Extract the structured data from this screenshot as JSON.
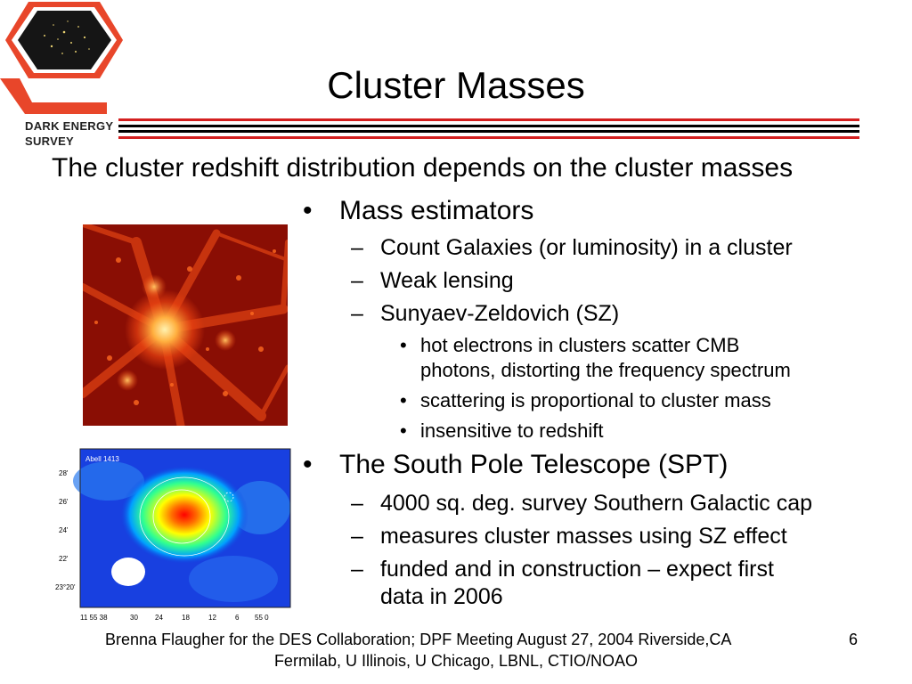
{
  "logo": {
    "line1": "DARK ENERGY",
    "line2": "SURVEY",
    "colors": {
      "frame": "#e8462a",
      "hex": "#151515"
    }
  },
  "slide": {
    "title": "Cluster Masses",
    "subtitle": "The cluster redshift distribution depends on the cluster masses",
    "bullets": {
      "b1": "Mass estimators",
      "b1_subs": [
        "Count Galaxies (or luminosity) in a cluster",
        "Weak lensing",
        "Sunyaev-Zeldovich (SZ)"
      ],
      "sz_points": [
        "hot electrons in clusters scatter CMB",
        "photons, distorting the frequency spectrum",
        "scattering is proportional to cluster mass",
        "insensitive to redshift"
      ],
      "b2": "The South Pole Telescope (SPT)",
      "b2_subs": [
        "4000 sq. deg. survey Southern Galactic cap",
        "measures cluster masses using SZ effect",
        "funded and in construction – expect first",
        "data in 2006"
      ]
    },
    "sz_map": {
      "label": "Abell 1413",
      "y_ticks": [
        "28'",
        "26'",
        "24'",
        "22'",
        "23°20'"
      ],
      "x_ticks": [
        "11 55 38",
        "30",
        "24",
        "18",
        "12",
        "6",
        "55 0"
      ]
    },
    "footer": {
      "line1": "Brenna Flaugher for the DES Collaboration;   DPF Meeting August 27, 2004 Riverside,CA",
      "line2": "Fermilab, U Illinois, U Chicago, LBNL, CTIO/NOAO",
      "page_number": "6"
    },
    "colors": {
      "rule_red": "#d42020",
      "rule_black": "#000000"
    }
  }
}
